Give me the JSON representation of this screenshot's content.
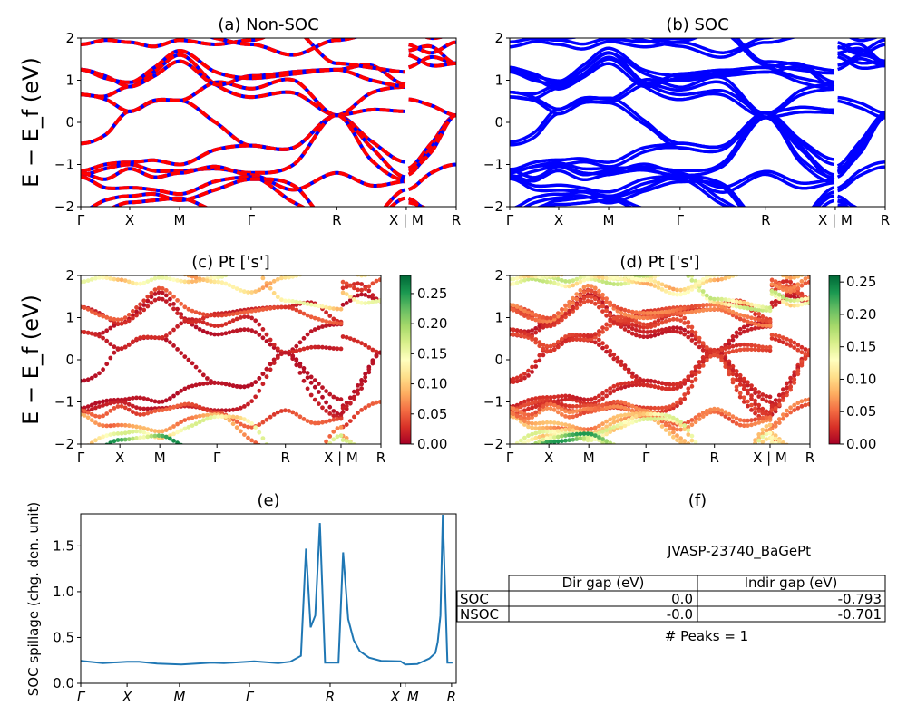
{
  "chart_data": [
    {
      "panel": "a",
      "type": "line",
      "title": "(a) Non-SOC",
      "ylabel": "E − E_f (eV)",
      "ylim": [
        -2,
        2
      ],
      "yticks": [
        -2,
        -1,
        0,
        1,
        2
      ],
      "ytick_labels": [
        "−2",
        "−1",
        "0",
        "1",
        "2"
      ],
      "xticks": {
        "k": [
          0,
          1,
          2.02,
          3.48,
          5.23,
          6.65,
          7.67
        ],
        "labels": [
          "Γ",
          "X",
          "M",
          "Γ",
          "R",
          "X | M",
          "R"
        ]
      },
      "colors": {
        "solid": "#0000ff",
        "dashed": "#ff0000"
      },
      "k_seg1": [
        0,
        0.5,
        1,
        1.5,
        2.02,
        2.75,
        3.48,
        4.35,
        5.23,
        5.94,
        6.65
      ],
      "k_seg2": [
        6.65,
        7.16,
        7.67
      ],
      "bands": [
        {
          "seg1": [
            -0.5,
            -0.3,
            0.26,
            0.5,
            0.52,
            0.0,
            -0.55,
            -0.6,
            0.17,
            -0.45,
            -0.94
          ],
          "seg2": [
            -1.1,
            -0.5,
            0.17
          ]
        },
        {
          "seg1": [
            0.66,
            0.62,
            0.85,
            1.2,
            1.6,
            0.9,
            0.6,
            0.7,
            0.17,
            0.7,
            0.84
          ],
          "seg2": [
            1.3,
            1.55,
            1.4
          ]
        },
        {
          "seg1": [
            0.66,
            0.55,
            0.26,
            0.52,
            0.52,
            0.95,
            0.8,
            1.0,
            0.17,
            0.3,
            0.26
          ],
          "seg2": [
            0.55,
            0.4,
            0.17
          ]
        },
        {
          "seg1": [
            1.25,
            1.1,
            0.85,
            1.1,
            1.45,
            0.9,
            1.1,
            1.2,
            1.25,
            1.35,
            0.9
          ],
          "seg2": [
            1.7,
            1.8,
            1.4
          ]
        },
        {
          "seg1": [
            1.25,
            1.05,
            0.95,
            1.3,
            1.7,
            1.2,
            1.05,
            1.15,
            1.25,
            1.0,
            0.86
          ],
          "seg2": [
            1.85,
            1.65,
            1.9
          ]
        },
        {
          "seg1": [
            1.85,
            1.95,
            1.9,
            1.8,
            1.95,
            1.85,
            1.95,
            2.2,
            1.4,
            1.3,
            1.2
          ],
          "seg2": [
            1.6,
            1.35,
            1.4
          ]
        },
        {
          "seg1": [
            -1.15,
            -1.0,
            -0.95,
            -0.9,
            -1.0,
            -0.65,
            -0.55,
            -0.6,
            0.17,
            -0.6,
            -1.3
          ],
          "seg2": [
            -1.25,
            -0.6,
            0.17
          ]
        },
        {
          "seg1": [
            -1.25,
            -1.1,
            -1.0,
            -1.15,
            -1.15,
            -1.1,
            -1.2,
            -1.0,
            0.17,
            -0.9,
            -1.37
          ],
          "seg2": [
            -1.15,
            -0.7,
            0.17
          ]
        },
        {
          "seg1": [
            -1.2,
            -1.35,
            -1.1,
            -1.3,
            -1.2,
            -1.05,
            -1.25,
            -1.6,
            -1.2,
            -1.5,
            -1.4
          ],
          "seg2": [
            -1.6,
            -1.2,
            -1.0
          ]
        },
        {
          "seg1": [
            -1.3,
            -1.55,
            -1.55,
            -1.6,
            -1.7,
            -1.4,
            -1.3,
            -1.9,
            -2.3,
            -2.3,
            -1.6
          ],
          "seg2": [
            -1.8,
            -2.2,
            -2.5
          ]
        },
        {
          "seg1": [
            -2.1,
            -1.85,
            -1.75,
            -1.7,
            -1.85,
            -1.6,
            -1.35,
            -1.5,
            -2.5,
            -2.4,
            -1.8
          ],
          "seg2": [
            -1.9,
            -2.1,
            -2.4
          ]
        },
        {
          "seg1": [
            -2.3,
            -2.1,
            -1.9,
            -1.85,
            -1.8,
            -2.1,
            -2.2,
            -2.6,
            -2.5,
            -2.6,
            -2.5
          ],
          "seg2": [
            -2.3,
            -2.4,
            -2.5
          ]
        },
        {
          "seg1": [
            2.3,
            2.2,
            2.05,
            2.1,
            2.2,
            2.0,
            1.85,
            1.6,
            1.95,
            2.1,
            2.1
          ],
          "seg2": [
            2.2,
            2.0,
            2.1
          ]
        }
      ]
    },
    {
      "panel": "b",
      "type": "line",
      "title": "(b) SOC",
      "ylim": [
        -2,
        2
      ],
      "yticks": [
        -2,
        -1,
        0,
        1,
        2
      ],
      "ytick_labels": [
        "−2",
        "−1",
        "0",
        "1",
        "2"
      ],
      "xticks": {
        "k": [
          0,
          1,
          2.02,
          3.48,
          5.23,
          6.65,
          7.67
        ],
        "labels": [
          "Γ",
          "X",
          "M",
          "Γ",
          "R",
          "X | M",
          "R"
        ]
      },
      "color": "#0000ff"
    },
    {
      "panel": "c",
      "type": "scatter",
      "title": "(c)  Pt ['s']",
      "ylabel": "E − E_f (eV)",
      "ylim": [
        -2,
        2
      ],
      "yticks": [
        -2,
        -1,
        0,
        1,
        2
      ],
      "ytick_labels": [
        "−2",
        "−1",
        "0",
        "1",
        "2"
      ],
      "xticks": {
        "k": [
          0,
          1,
          2.02,
          3.48,
          5.23,
          6.65,
          7.67
        ],
        "labels": [
          "Γ",
          "X",
          "M",
          "Γ",
          "R",
          "X | M",
          "R"
        ]
      },
      "band_weights": [
        0.01,
        0.01,
        0.02,
        0.02,
        0.04,
        0.12,
        0.01,
        0.015,
        0.04,
        0.07,
        0.13,
        0.2,
        0.1
      ],
      "colorbar": {
        "colormap": "RdYlGn",
        "min": 0,
        "max": 0.28,
        "ticks": [
          0,
          0.05,
          0.1,
          0.15,
          0.2,
          0.25
        ],
        "tick_labels": [
          "0.00",
          "0.05",
          "0.10",
          "0.15",
          "0.20",
          "0.25"
        ]
      }
    },
    {
      "panel": "d",
      "type": "scatter",
      "title": "(d) Pt ['s']",
      "ylim": [
        -2,
        2
      ],
      "yticks": [
        -2,
        -1,
        0,
        1,
        2
      ],
      "ytick_labels": [
        "−2",
        "−1",
        "0",
        "1",
        "2"
      ],
      "xticks": {
        "k": [
          0,
          1,
          2.02,
          3.48,
          5.23,
          6.65,
          7.67
        ],
        "labels": [
          "Γ",
          "X",
          "M",
          "Γ",
          "R",
          "X | M",
          "R"
        ]
      },
      "band_weights": [
        0.02,
        0.015,
        0.03,
        0.03,
        0.05,
        0.13,
        0.02,
        0.03,
        0.05,
        0.07,
        0.12,
        0.18,
        0.1
      ],
      "colorbar": {
        "colormap": "RdYlGn",
        "min": 0,
        "max": 0.26,
        "ticks": [
          0,
          0.05,
          0.1,
          0.15,
          0.2,
          0.25
        ],
        "tick_labels": [
          "0.00",
          "0.05",
          "0.10",
          "0.15",
          "0.20",
          "0.25"
        ]
      }
    },
    {
      "panel": "e",
      "type": "line",
      "title": "(e)",
      "ylabel": "SOC spillage (chg. den. unit)",
      "ylim": [
        0,
        1.85
      ],
      "xlim": [
        0,
        81
      ],
      "yticks": [
        0,
        0.5,
        1.0,
        1.5
      ],
      "ytick_labels": [
        "0.0",
        "0.5",
        "1.0",
        "1.5"
      ],
      "xticks": {
        "x": [
          0,
          10,
          21.3,
          36.4,
          53.8,
          69,
          70,
          80
        ],
        "labels": [
          "Γ",
          "X",
          "M",
          "Γ",
          "R",
          "X",
          "M",
          "R"
        ]
      },
      "color": "#1f77b4",
      "x": [
        0,
        4.8,
        10,
        12.6,
        16.5,
        21.7,
        28.2,
        30.9,
        37.4,
        42.6,
        45.2,
        47.5,
        48.6,
        49.6,
        50.6,
        51.6,
        52.7,
        55.6,
        56.6,
        57.7,
        58.9,
        60.2,
        62.2,
        64.8,
        69,
        70,
        72.6,
        75.2,
        76.5,
        77,
        77.6,
        78.1,
        79.1,
        80.2
      ],
      "y": [
        0.245,
        0.22,
        0.235,
        0.235,
        0.215,
        0.205,
        0.225,
        0.22,
        0.24,
        0.22,
        0.235,
        0.3,
        1.47,
        0.61,
        0.74,
        1.75,
        0.225,
        0.225,
        1.43,
        0.7,
        0.47,
        0.35,
        0.28,
        0.245,
        0.24,
        0.205,
        0.21,
        0.27,
        0.33,
        0.45,
        0.74,
        1.84,
        0.225,
        0.225
      ]
    },
    {
      "panel": "f",
      "type": "table",
      "title": "(f)",
      "subtitle": "JVASP-23740_BaGePt",
      "columns": [
        "",
        "Dir gap (eV)",
        "Indir gap (eV)"
      ],
      "rows": [
        [
          "SOC",
          "0.0",
          "-0.793"
        ],
        [
          "NSOC",
          "-0.0",
          "-0.701"
        ]
      ],
      "footer": "# Peaks = 1"
    }
  ]
}
